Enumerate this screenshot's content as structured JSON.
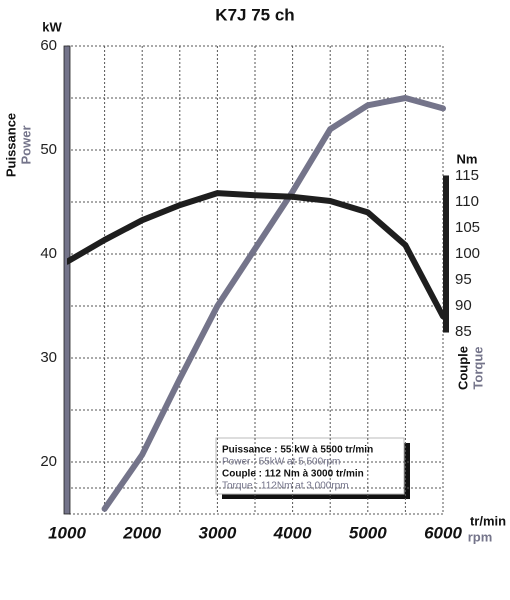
{
  "chart_data": {
    "type": "line",
    "title": "K7J 75 ch",
    "ylabel": "Puissance",
    "ylabel_en": "Power",
    "yunit": "kW",
    "y2label": "Couple",
    "y2label_en": "Torque",
    "y2unit": "Nm",
    "xunit": "tr/min",
    "xunit_en": "rpm",
    "x": [
      1000,
      1500,
      2000,
      2500,
      3000,
      3500,
      4000,
      4500,
      5000,
      5500,
      6000
    ],
    "xlim": [
      1000,
      6000
    ],
    "xticks": [
      1000,
      2000,
      3000,
      4000,
      5000,
      6000
    ],
    "ylim": [
      15,
      60
    ],
    "yticks": [
      20,
      30,
      40,
      50,
      60
    ],
    "y2lim": [
      50,
      140
    ],
    "y2ticks": [
      85,
      90,
      95,
      100,
      105,
      110,
      115
    ],
    "grid": true,
    "series": [
      {
        "name": "Power",
        "color": "#74748a",
        "values": [
          null,
          15.5,
          20.7,
          28,
          35,
          40.5,
          46,
          52,
          54.3,
          55,
          54
        ]
      },
      {
        "name": "Torque",
        "color": "#1e1e1e",
        "axis": "y2",
        "values": [
          98.5,
          102.7,
          106.5,
          109.4,
          111.7,
          111.3,
          111,
          110.2,
          108,
          101.7,
          88
        ]
      }
    ],
    "annotations": [
      "Puissance : 55 kW à 5500 tr/min",
      "Power : 55kW at 5,500rpm",
      "Couple : 112 Nm à 3000 tr/min",
      "Torque : 112Nm at 3,000rpm"
    ]
  }
}
